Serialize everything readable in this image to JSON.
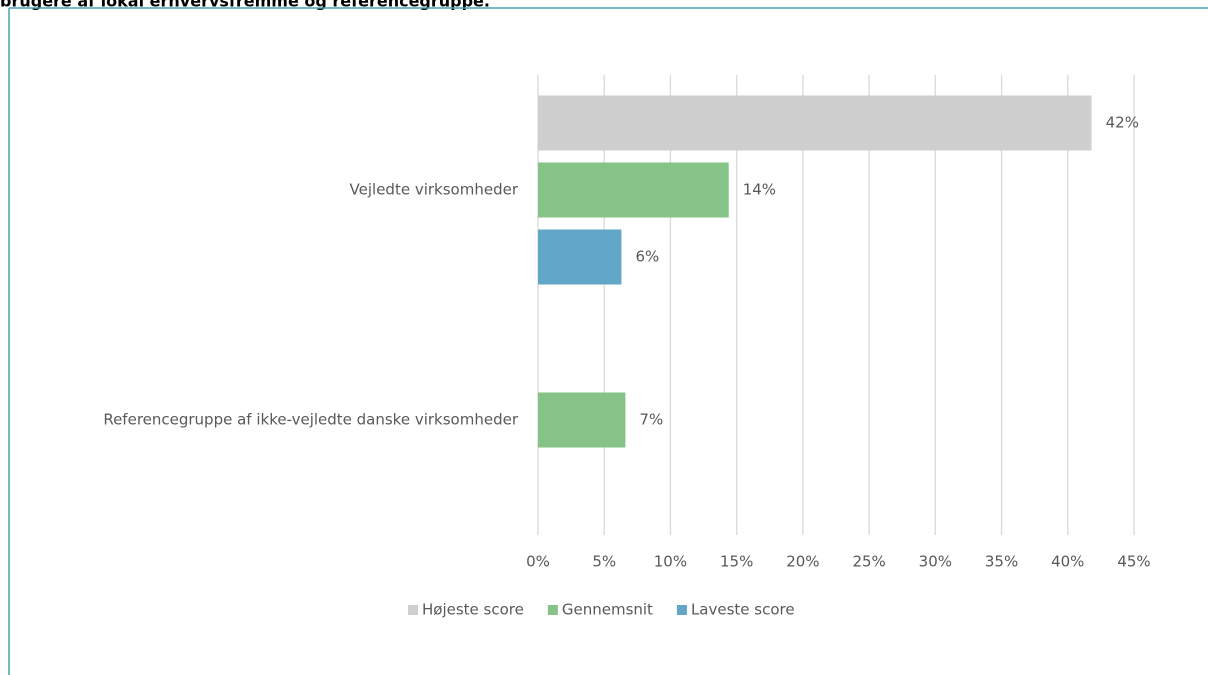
{
  "chart_data": {
    "type": "hbar",
    "title": "brugere af lokal erhvervsfremme og referencegruppe.",
    "categories": [
      "Vejledte virksomheder",
      "Referencegruppe af ikke-vejledte danske virksomheder"
    ],
    "series": [
      {
        "name": "Højeste score",
        "color": "#d0cfd0",
        "values": [
          41.8,
          null
        ],
        "value_labels": [
          "42%",
          null
        ]
      },
      {
        "name": "Gennemsnit",
        "color": "#85c387",
        "values": [
          14.4,
          6.6
        ],
        "value_labels": [
          "14%",
          "7%"
        ]
      },
      {
        "name": "Laveste score",
        "color": "#62a7c8",
        "values": [
          6.3,
          null
        ],
        "value_labels": [
          "6%",
          null
        ]
      }
    ],
    "xlim": [
      0,
      45
    ],
    "xticks": [
      {
        "value": 0,
        "label": "0%"
      },
      {
        "value": 5,
        "label": "5%"
      },
      {
        "value": 10,
        "label": "10%"
      },
      {
        "value": 15,
        "label": "15%"
      },
      {
        "value": 20,
        "label": "20%"
      },
      {
        "value": 25,
        "label": "25%"
      },
      {
        "value": 30,
        "label": "30%"
      },
      {
        "value": 35,
        "label": "35%"
      },
      {
        "value": 40,
        "label": "40%"
      },
      {
        "value": 45,
        "label": "45%"
      }
    ],
    "grid": true,
    "legend": "bottom"
  }
}
